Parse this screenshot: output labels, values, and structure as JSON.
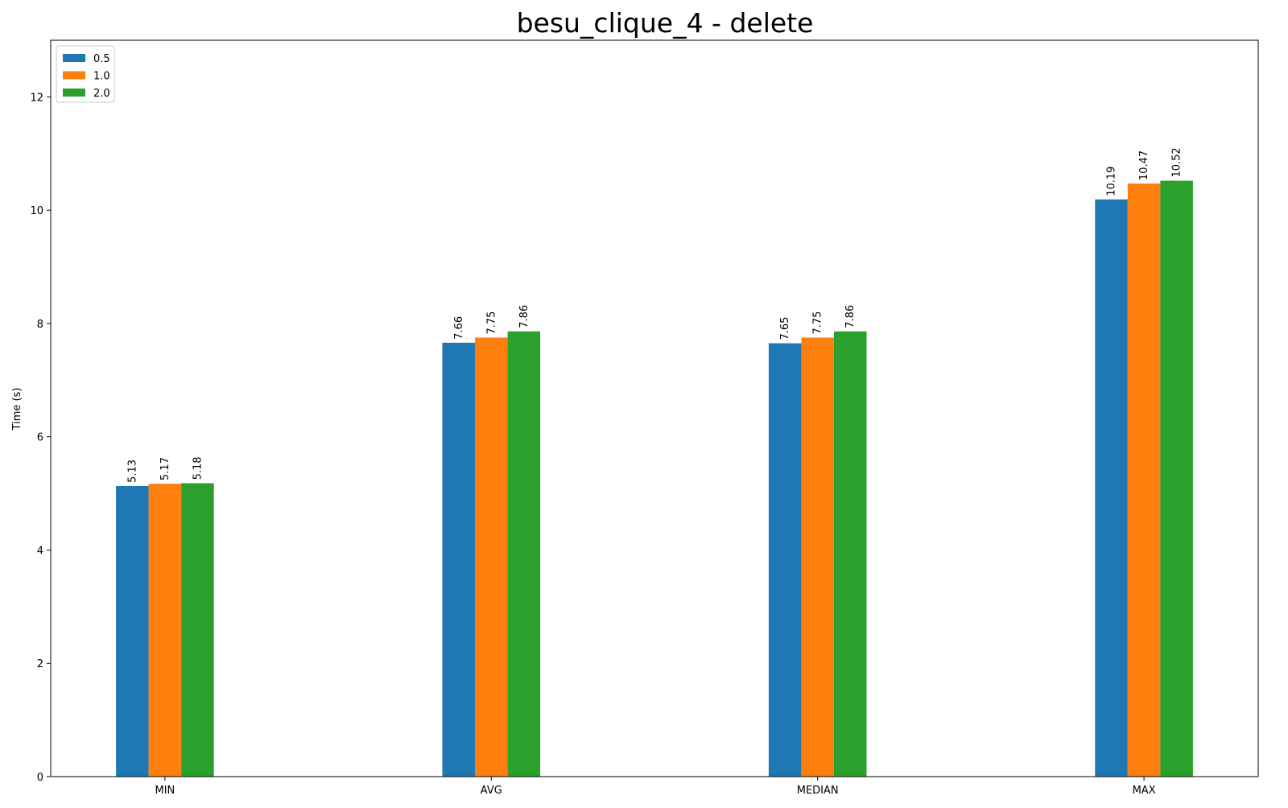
{
  "chart_data": {
    "type": "bar",
    "title": "besu_clique_4 - delete",
    "xlabel": "",
    "ylabel": "Time (s)",
    "categories": [
      "MIN",
      "AVG",
      "MEDIAN",
      "MAX"
    ],
    "series": [
      {
        "name": "0.5",
        "color": "#1f77b4",
        "values": [
          5.13,
          7.66,
          7.65,
          10.19
        ]
      },
      {
        "name": "1.0",
        "color": "#ff7f0e",
        "values": [
          5.17,
          7.75,
          7.75,
          10.47
        ]
      },
      {
        "name": "2.0",
        "color": "#2ca02c",
        "values": [
          5.18,
          7.86,
          7.86,
          10.52
        ]
      }
    ],
    "data_labels": [
      [
        "5.13",
        "7.66",
        "7.65",
        "10.19"
      ],
      [
        "5.17",
        "7.75",
        "7.75",
        "10.47"
      ],
      [
        "5.18",
        "7.86",
        "7.86",
        "10.52"
      ]
    ],
    "ylim": [
      0,
      13
    ],
    "yticks": [
      0,
      2,
      4,
      6,
      8,
      10,
      12
    ],
    "ytick_labels": [
      "0",
      "2",
      "4",
      "6",
      "8",
      "10",
      "12"
    ],
    "grid": false,
    "legend_position": "top-left"
  }
}
